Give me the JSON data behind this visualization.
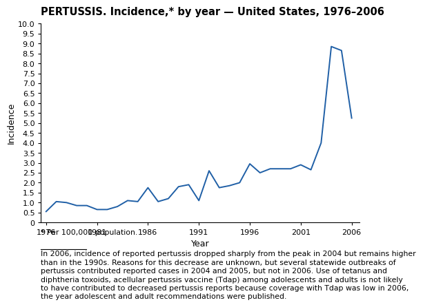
{
  "title": "PERTUSSIS. Incidence,* by year — United States, 1976–2006",
  "xlabel": "Year",
  "ylabel": "Incidence",
  "line_color": "#1f5fa6",
  "line_width": 1.4,
  "background_color": "#ffffff",
  "ylim": [
    0,
    10.0
  ],
  "yticks": [
    0,
    0.5,
    1.0,
    1.5,
    2.0,
    2.5,
    3.0,
    3.5,
    4.0,
    4.5,
    5.0,
    5.5,
    6.0,
    6.5,
    7.0,
    7.5,
    8.0,
    8.5,
    9.0,
    9.5,
    10.0
  ],
  "xticks": [
    1976,
    1981,
    1986,
    1991,
    1996,
    2001,
    2006
  ],
  "xlim": [
    1975.5,
    2006.8
  ],
  "years": [
    1976,
    1977,
    1978,
    1979,
    1980,
    1981,
    1982,
    1983,
    1984,
    1985,
    1986,
    1987,
    1988,
    1989,
    1990,
    1991,
    1992,
    1993,
    1994,
    1995,
    1996,
    1997,
    1998,
    1999,
    2000,
    2001,
    2002,
    2003,
    2004,
    2005,
    2006
  ],
  "values": [
    0.55,
    1.05,
    1.0,
    0.85,
    0.85,
    0.65,
    0.65,
    0.8,
    1.1,
    1.05,
    1.75,
    1.05,
    1.2,
    1.8,
    1.9,
    1.1,
    2.6,
    1.75,
    1.85,
    2.0,
    2.95,
    2.5,
    2.7,
    2.7,
    2.7,
    2.9,
    2.65,
    4.0,
    8.85,
    8.65,
    5.25
  ],
  "footnote_star": "* Per 100,000 population.",
  "footnote_text": "In 2006, incidence of reported pertussis dropped sharply from the peak in 2004 but remains higher\nthan in the 1990s. Reasons for this decrease are unknown, but several statewide outbreaks of\npertussis contributed reported cases in 2004 and 2005, but not in 2006. Use of tetanus and\ndiphtheria toxoids, acellular pertussis vaccine (Tdap) among adolescents and adults is not likely\nto have contributed to decreased pertussis reports because coverage with Tdap was low in 2006,\nthe year adolescent and adult recommendations were published.",
  "title_fontsize": 10.5,
  "axis_label_fontsize": 9,
  "tick_fontsize": 8,
  "footnote_fontsize": 7.8
}
